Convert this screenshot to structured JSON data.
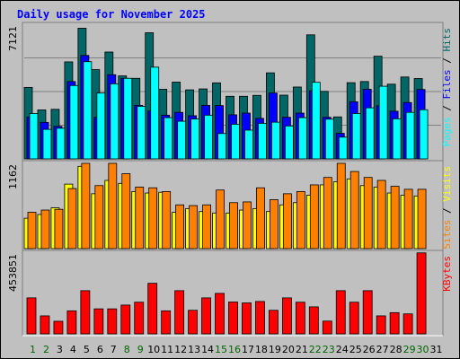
{
  "title": "Daily usage for November 2025",
  "colors": {
    "hits": "#006666",
    "files": "#0000ff",
    "pages": "#00ffff",
    "visits": "#ffff00",
    "sites": "#ff8000",
    "kbytes": "#ff0000",
    "weekend_label": "#006600",
    "weekday_label": "#000000"
  },
  "chart_data": [
    {
      "type": "bar",
      "panel": "hits-files-pages",
      "ymax_label": "7121",
      "ylim": [
        0,
        7121
      ],
      "grid": true,
      "categories": [
        "1",
        "2",
        "3",
        "4",
        "5",
        "6",
        "7",
        "8",
        "9",
        "10",
        "11",
        "12",
        "13",
        "14",
        "15",
        "16",
        "17",
        "18",
        "19",
        "20",
        "21",
        "22",
        "23",
        "24",
        "25",
        "26",
        "27",
        "28",
        "29",
        "30"
      ],
      "right_labels": [
        "Pages",
        "Files",
        "Hits"
      ],
      "series": [
        {
          "name": "Hits",
          "values": [
            3780,
            2590,
            2620,
            5130,
            6910,
            4720,
            5650,
            4390,
            4260,
            6670,
            3680,
            4060,
            3650,
            3700,
            4020,
            3310,
            3310,
            3360,
            4550,
            3370,
            3800,
            6560,
            3570,
            2220,
            4030,
            4090,
            5430,
            3950,
            4330,
            4250
          ]
        },
        {
          "name": "Files",
          "values": [
            2210,
            1930,
            1720,
            4090,
            5470,
            2200,
            4450,
            4260,
            2830,
            2530,
            2310,
            2460,
            2280,
            2830,
            2820,
            2330,
            2420,
            2140,
            3480,
            2200,
            2420,
            3600,
            2200,
            1350,
            3020,
            3680,
            2810,
            2520,
            2980,
            3670
          ]
        },
        {
          "name": "Pages",
          "values": [
            2400,
            1560,
            1620,
            3880,
            5140,
            3480,
            3970,
            4260,
            2780,
            4850,
            2180,
            1990,
            2110,
            2310,
            1340,
            1830,
            1520,
            1880,
            1940,
            1740,
            2180,
            4050,
            2100,
            1150,
            2400,
            2700,
            3840,
            2120,
            2460,
            2600
          ]
        }
      ]
    },
    {
      "type": "bar",
      "panel": "visits-sites",
      "ymax_label": "1162",
      "ylim": [
        0,
        1162
      ],
      "grid": false,
      "categories": [
        "1",
        "2",
        "3",
        "4",
        "5",
        "6",
        "7",
        "8",
        "9",
        "10",
        "11",
        "12",
        "13",
        "14",
        "15",
        "16",
        "17",
        "18",
        "19",
        "20",
        "21",
        "22",
        "23",
        "24",
        "25",
        "26",
        "27",
        "28",
        "29",
        "30"
      ],
      "right_labels": [
        "Sites",
        "Visits"
      ],
      "series": [
        {
          "name": "Visits",
          "values": [
            410,
            460,
            550,
            870,
            1110,
            740,
            920,
            880,
            770,
            750,
            760,
            490,
            540,
            500,
            480,
            480,
            520,
            540,
            500,
            590,
            620,
            720,
            860,
            900,
            940,
            850,
            830,
            750,
            720,
            710
          ]
        },
        {
          "name": "Sites",
          "values": [
            490,
            520,
            530,
            810,
            1150,
            850,
            1150,
            1010,
            830,
            820,
            770,
            590,
            580,
            590,
            790,
            620,
            630,
            820,
            660,
            740,
            770,
            860,
            960,
            1150,
            1040,
            960,
            920,
            840,
            800,
            800
          ]
        }
      ]
    },
    {
      "type": "bar",
      "panel": "kbytes",
      "ymax_label": "453851",
      "ylim": [
        0,
        453851
      ],
      "grid": false,
      "categories": [
        "1",
        "2",
        "3",
        "4",
        "5",
        "6",
        "7",
        "8",
        "9",
        "10",
        "11",
        "12",
        "13",
        "14",
        "15",
        "16",
        "17",
        "18",
        "19",
        "20",
        "21",
        "22",
        "23",
        "24",
        "25",
        "26",
        "27",
        "28",
        "29",
        "30"
      ],
      "right_labels": [
        "KBytes"
      ],
      "series": [
        {
          "name": "KBytes",
          "values": [
            200000,
            100000,
            70000,
            128000,
            240000,
            139000,
            139000,
            160000,
            176000,
            281000,
            128000,
            240000,
            131000,
            200000,
            225000,
            177000,
            172000,
            180000,
            131000,
            200000,
            176000,
            150000,
            71000,
            240000,
            176000,
            240000,
            100000,
            118000,
            111000,
            450000
          ]
        }
      ]
    }
  ],
  "x_labels": [
    "1",
    "2",
    "3",
    "4",
    "5",
    "6",
    "7",
    "8",
    "9",
    "10",
    "11",
    "12",
    "13",
    "14",
    "15",
    "16",
    "17",
    "18",
    "19",
    "20",
    "21",
    "22",
    "23",
    "24",
    "25",
    "26",
    "27",
    "28",
    "29",
    "30",
    "31"
  ],
  "weekend_days": [
    "1",
    "2",
    "8",
    "9",
    "15",
    "16",
    "22",
    "23",
    "29",
    "30"
  ]
}
